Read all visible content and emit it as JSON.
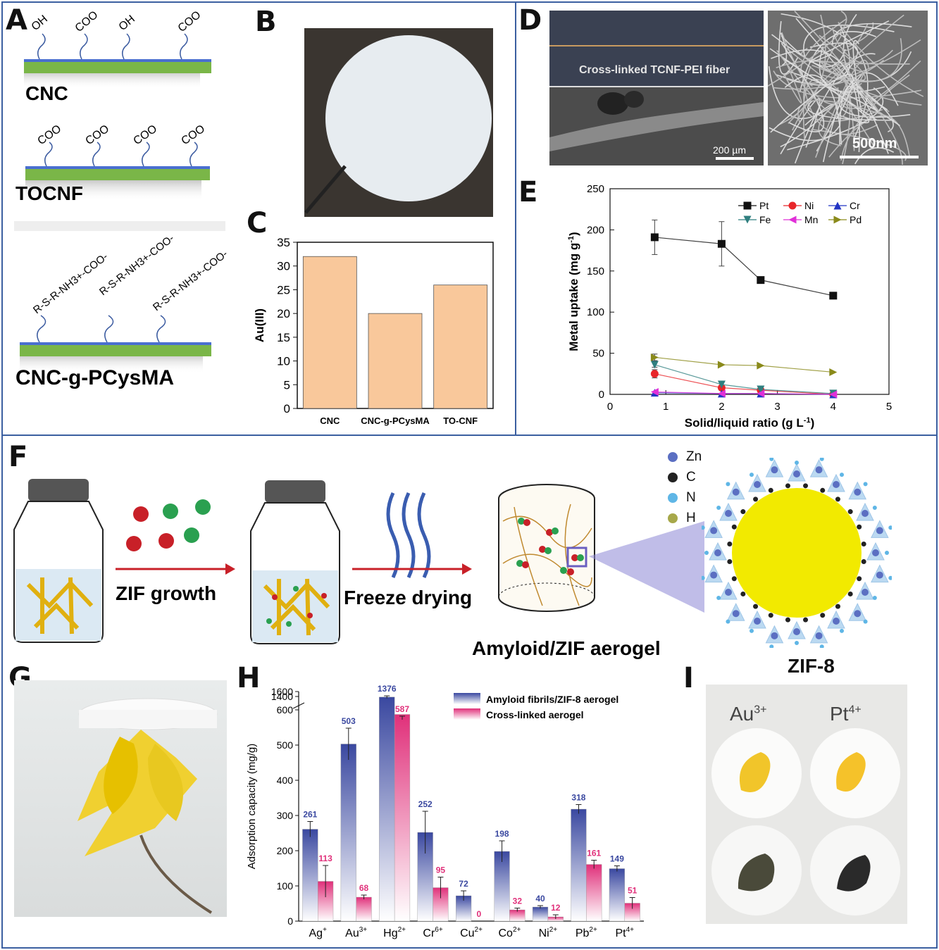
{
  "panel_labels": {
    "A": "A",
    "B": "B",
    "C": "C",
    "D": "D",
    "E": "E",
    "F": "F",
    "G": "G",
    "H": "H",
    "I": "I"
  },
  "panelA": {
    "cnc": {
      "name": "CNC",
      "groups": [
        "OH",
        "COO",
        "OH",
        "COO"
      ]
    },
    "tocnf": {
      "name": "TOCNF",
      "groups": [
        "COO",
        "COO",
        "COO",
        "COO"
      ]
    },
    "cncg": {
      "name": "CNC-g-PCysMA",
      "groups": [
        "R-S-R-NH3+-COO-",
        "R-S-R-NH3+-COO-",
        "R-S-R-NH3+-COO-"
      ]
    },
    "colors": {
      "fiber": "#7ab648",
      "edge": "#4a6fd0"
    }
  },
  "panelD": {
    "caption": "Cross-linked TCNF-PEI fiber",
    "scale_left": "200 µm",
    "scale_right": "500nm"
  },
  "panelF": {
    "step1": "ZIF growth",
    "step2": "Freeze drying",
    "product": "Amyloid/ZIF aerogel",
    "framework": "ZIF-8",
    "legend": [
      {
        "label": "Zn",
        "color": "#5b6fc2"
      },
      {
        "label": "C",
        "color": "#222222"
      },
      {
        "label": "N",
        "color": "#5fb6e6"
      },
      {
        "label": "H",
        "color": "#a7a84a"
      }
    ]
  },
  "panelI": {
    "col1": "Au",
    "col1_sup": "3+",
    "col2": "Pt",
    "col2_sup": "4+"
  },
  "chart_data": [
    {
      "id": "C",
      "type": "bar",
      "categories": [
        "CNC",
        "CNC-g-PCysMA",
        "TO-CNF"
      ],
      "values": [
        32,
        20,
        26
      ],
      "ylabel": "Au(III)",
      "xlabel": "",
      "ylim": [
        0,
        35
      ],
      "yticks": [
        0,
        5,
        10,
        15,
        20,
        25,
        30,
        35
      ],
      "color": "#f9c89b"
    },
    {
      "id": "E",
      "type": "line",
      "xlabel": "Solid/liquid ratio (g L",
      "xlabel_sup": "-1",
      "xlabel_end": ")",
      "ylabel": "Metal uptake (mg g",
      "ylabel_sup": "-1",
      "ylabel_end": ")",
      "xlim": [
        0,
        5
      ],
      "ylim": [
        0,
        250
      ],
      "xticks": [
        0,
        1,
        2,
        3,
        4,
        5
      ],
      "yticks": [
        0,
        50,
        100,
        150,
        200,
        250
      ],
      "legend_position": "top-right",
      "series": [
        {
          "name": "Pt",
          "color": "#111111",
          "marker": "square",
          "x": [
            0.8,
            2,
            2.7,
            4
          ],
          "y": [
            191,
            183,
            139,
            120
          ],
          "err": [
            21,
            27,
            0,
            4
          ]
        },
        {
          "name": "Ni",
          "color": "#e8262a",
          "marker": "circle",
          "x": [
            0.8,
            2,
            2.7,
            4
          ],
          "y": [
            25,
            8,
            5,
            0
          ],
          "err": [
            5,
            0,
            0,
            0
          ]
        },
        {
          "name": "Cr",
          "color": "#2234c4",
          "marker": "triangle-up",
          "x": [
            0.8,
            2,
            2.7,
            4
          ],
          "y": [
            2,
            1,
            1,
            0
          ],
          "err": [
            0,
            0,
            0,
            0
          ]
        },
        {
          "name": "Fe",
          "color": "#2f7f7f",
          "marker": "triangle-down",
          "x": [
            0.8,
            2,
            2.7,
            4
          ],
          "y": [
            36,
            12,
            6,
            1
          ],
          "err": [
            3,
            0,
            0,
            0
          ]
        },
        {
          "name": "Mn",
          "color": "#e030d8",
          "marker": "triangle-left",
          "x": [
            0.8,
            2,
            2.7,
            4
          ],
          "y": [
            3,
            1,
            1,
            0
          ],
          "err": [
            0,
            0,
            0,
            0
          ]
        },
        {
          "name": "Pd",
          "color": "#8a8a1a",
          "marker": "triangle-right",
          "x": [
            0.8,
            2,
            2.7,
            4
          ],
          "y": [
            45,
            36,
            35,
            27
          ],
          "err": [
            4,
            0,
            0,
            0
          ]
        }
      ]
    },
    {
      "id": "H",
      "type": "bar",
      "ylabel": "Adsorption capacity (mg/g)",
      "categories": [
        "Ag",
        "Au",
        "Hg",
        "Cr",
        "Cu",
        "Co",
        "Ni",
        "Pb",
        "Pt"
      ],
      "category_sups": [
        "+",
        "3+",
        "2+",
        "6+",
        "2+",
        "2+",
        "2+",
        "2+",
        "4+"
      ],
      "ytick_labels": [
        "0",
        "100",
        "200",
        "300",
        "400",
        "500",
        "600",
        "1400",
        "1600"
      ],
      "axis_break": [
        600,
        1200
      ],
      "series": [
        {
          "name": "Amyloid fibrils/ZIF-8 aerogel",
          "color": "#3a48a0",
          "values": [
            261,
            503,
            1376,
            252,
            72,
            198,
            40,
            318,
            149
          ],
          "labels": [
            "261",
            "503",
            "1376",
            "252",
            "72",
            "198",
            "40",
            "318",
            "149"
          ],
          "err": [
            22,
            45,
            50,
            60,
            14,
            30,
            4,
            13,
            8
          ]
        },
        {
          "name": "Cross-linked aerogel",
          "color": "#e0307a",
          "values": [
            113,
            68,
            587,
            95,
            0,
            32,
            12,
            161,
            51
          ],
          "labels": [
            "113",
            "68",
            "587",
            "95",
            "0",
            "32",
            "12",
            "161",
            "51"
          ],
          "err": [
            45,
            6,
            15,
            30,
            0,
            5,
            6,
            12,
            16
          ]
        }
      ]
    }
  ]
}
